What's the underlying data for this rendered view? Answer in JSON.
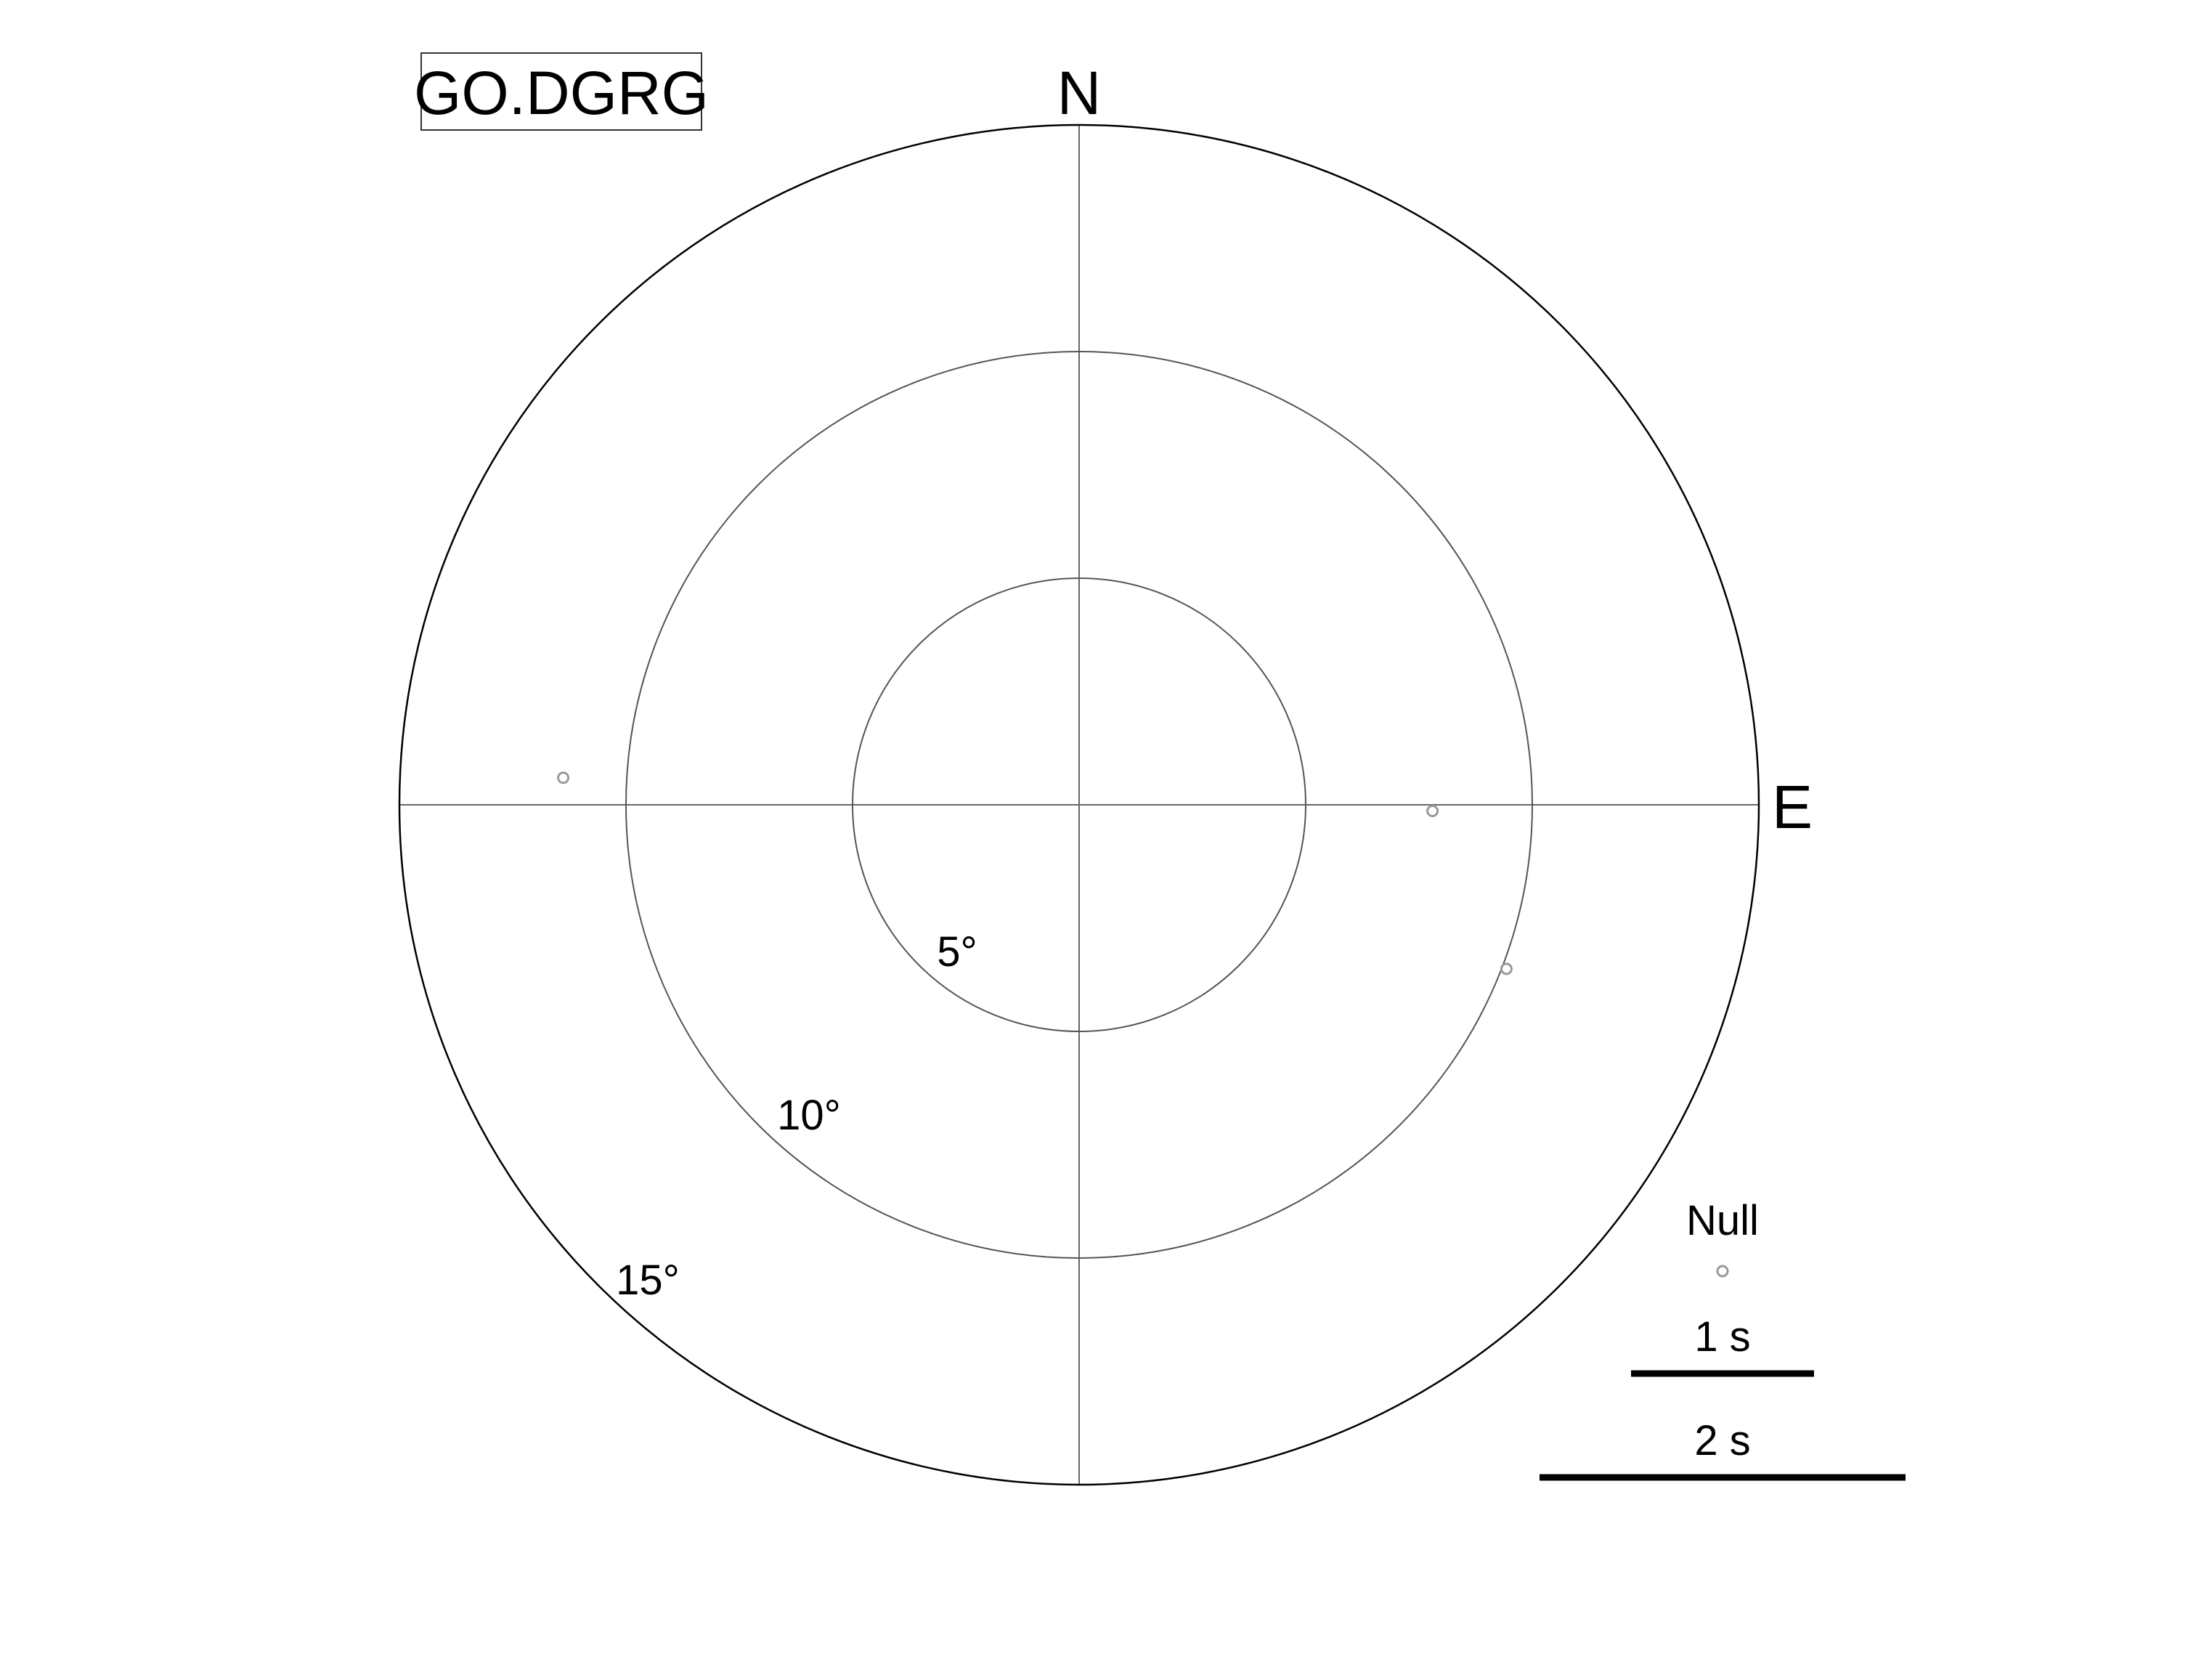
{
  "chart_data": {
    "type": "scatter",
    "title": "GO.DGRG",
    "projection": "polar",
    "directions": {
      "north": "N",
      "east": "E"
    },
    "radial_max_deg": 15,
    "rings": [
      {
        "value": 5,
        "label": "5°"
      },
      {
        "value": 10,
        "label": "10°"
      },
      {
        "value": 15,
        "label": "15°"
      }
    ],
    "series": [
      {
        "name": "Null",
        "marker": "open-circle",
        "color": "#999999",
        "points": [
          {
            "azimuth_deg": 91,
            "incidence_deg": 7.8
          },
          {
            "azimuth_deg": 111,
            "incidence_deg": 10.1
          },
          {
            "azimuth_deg": 273,
            "incidence_deg": 11.4
          }
        ]
      }
    ],
    "legend": {
      "position": "bottom-right",
      "null_label": "Null",
      "scale_bars": [
        {
          "label": "1 s",
          "seconds": 1
        },
        {
          "label": "2 s",
          "seconds": 2
        }
      ]
    },
    "colors": {
      "outer_circle": "#000000",
      "grid": "#666666",
      "null_marker": "#999999"
    }
  }
}
